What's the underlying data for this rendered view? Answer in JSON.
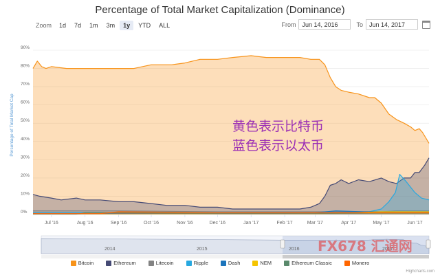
{
  "title": "Percentage of Total Market Capitalization (Dominance)",
  "zoom": {
    "label": "Zoom",
    "buttons": [
      "1d",
      "7d",
      "1m",
      "3m",
      "1y",
      "YTD",
      "ALL"
    ],
    "active": "1y"
  },
  "range": {
    "from_label": "From",
    "from_value": "Jun 14, 2016",
    "to_label": "To",
    "to_value": "Jun 14, 2017"
  },
  "annotation": {
    "line1": "黄色表示比特币",
    "line2": "蓝色表示以太币",
    "color": "#9b2fb5"
  },
  "navigator": {
    "labels": [
      "2014",
      "2015",
      "2016",
      "2017"
    ]
  },
  "watermark": "FX678 汇通网",
  "credits": "Highcharts.com",
  "colors": {
    "bitcoin": "#f7931a",
    "ethereum": "#454a75",
    "litecoin": "#838383",
    "ripple": "#27a8e0",
    "dash": "#1c75bc",
    "nem": "#f5c400",
    "ethereum_classic": "#5a8a6c",
    "monero": "#ff6600",
    "grid": "#e6e6e6",
    "axis_label": "#5b9bd5"
  },
  "chart_data": {
    "type": "area",
    "title": "Percentage of Total Market Capitalization (Dominance)",
    "ylabel": "Percentage of Total Market Cap",
    "ylim": [
      0,
      90
    ],
    "yticks": [
      0,
      10,
      20,
      30,
      40,
      50,
      60,
      70,
      80,
      90
    ],
    "ytick_labels": [
      "0%",
      "10%",
      "20%",
      "30%",
      "40%",
      "50%",
      "60%",
      "70%",
      "80%",
      "90%"
    ],
    "xlim": [
      "2016-06-14",
      "2017-06-14"
    ],
    "xticks": [
      "2016-07-01",
      "2016-08-01",
      "2016-09-01",
      "2016-10-01",
      "2016-11-01",
      "2016-12-01",
      "2017-01-01",
      "2017-02-01",
      "2017-03-01",
      "2017-04-01",
      "2017-05-01",
      "2017-06-01"
    ],
    "xtick_labels": [
      "Jul '16",
      "Aug '16",
      "Sep '16",
      "Oct '16",
      "Nov '16",
      "Dec '16",
      "Jan '17",
      "Feb '17",
      "Mar '17",
      "Apr '17",
      "May '17",
      "Jun '17"
    ],
    "grid": true,
    "legend_position": "bottom",
    "series": [
      {
        "name": "Bitcoin",
        "color": "#f7931a",
        "x": [
          "2016-06-14",
          "2016-06-18",
          "2016-06-22",
          "2016-06-26",
          "2016-07-01",
          "2016-07-15",
          "2016-08-01",
          "2016-08-20",
          "2016-09-01",
          "2016-09-15",
          "2016-10-01",
          "2016-10-20",
          "2016-11-01",
          "2016-11-15",
          "2016-12-01",
          "2016-12-15",
          "2017-01-01",
          "2017-01-15",
          "2017-02-01",
          "2017-02-15",
          "2017-02-25",
          "2017-03-05",
          "2017-03-10",
          "2017-03-15",
          "2017-03-20",
          "2017-03-25",
          "2017-04-01",
          "2017-04-10",
          "2017-04-20",
          "2017-04-25",
          "2017-05-01",
          "2017-05-08",
          "2017-05-15",
          "2017-05-22",
          "2017-05-28",
          "2017-06-01",
          "2017-06-05",
          "2017-06-08",
          "2017-06-11",
          "2017-06-14"
        ],
        "values": [
          80,
          84,
          81,
          80,
          81,
          80,
          80,
          80,
          80,
          80,
          82,
          82,
          83,
          85,
          85,
          86,
          87,
          86,
          86,
          86,
          85,
          85,
          82,
          75,
          70,
          68,
          67,
          66,
          64,
          64,
          61,
          55,
          52,
          50,
          48,
          46,
          47,
          45,
          42,
          39
        ]
      },
      {
        "name": "Ethereum",
        "color": "#454a75",
        "x": [
          "2016-06-14",
          "2016-06-20",
          "2016-07-01",
          "2016-07-10",
          "2016-07-24",
          "2016-08-01",
          "2016-08-15",
          "2016-09-01",
          "2016-09-15",
          "2016-10-01",
          "2016-10-15",
          "2016-11-01",
          "2016-11-15",
          "2016-12-01",
          "2016-12-15",
          "2017-01-01",
          "2017-01-15",
          "2017-02-01",
          "2017-02-15",
          "2017-02-25",
          "2017-03-05",
          "2017-03-10",
          "2017-03-15",
          "2017-03-20",
          "2017-03-25",
          "2017-04-01",
          "2017-04-10",
          "2017-04-20",
          "2017-05-01",
          "2017-05-08",
          "2017-05-15",
          "2017-05-22",
          "2017-05-28",
          "2017-06-01",
          "2017-06-05",
          "2017-06-10",
          "2017-06-14"
        ],
        "values": [
          11,
          10,
          9,
          8,
          9,
          8,
          8,
          7,
          7,
          6,
          5,
          5,
          4,
          4,
          3,
          3,
          3,
          3,
          3,
          4,
          6,
          10,
          16,
          17,
          19,
          17,
          19,
          18,
          20,
          18,
          17,
          20,
          20,
          23,
          23,
          27,
          31
        ]
      },
      {
        "name": "Litecoin",
        "color": "#838383",
        "x": [
          "2016-06-14",
          "2016-09-01",
          "2016-12-01",
          "2017-03-01",
          "2017-04-01",
          "2017-05-01",
          "2017-05-15",
          "2017-06-01",
          "2017-06-14"
        ],
        "values": [
          2,
          2,
          1.5,
          1.5,
          1.5,
          1.5,
          2,
          2,
          2
        ]
      },
      {
        "name": "Ripple",
        "color": "#27a8e0",
        "x": [
          "2016-06-14",
          "2016-09-01",
          "2016-12-01",
          "2017-02-01",
          "2017-03-01",
          "2017-03-20",
          "2017-04-01",
          "2017-04-20",
          "2017-05-01",
          "2017-05-08",
          "2017-05-14",
          "2017-05-18",
          "2017-05-24",
          "2017-06-01",
          "2017-06-07",
          "2017-06-14"
        ],
        "values": [
          1,
          1,
          1,
          1,
          1,
          1,
          1,
          1.5,
          3,
          7,
          12,
          22,
          18,
          12,
          9,
          8
        ]
      },
      {
        "name": "Dash",
        "color": "#1c75bc",
        "x": [
          "2016-06-14",
          "2016-12-01",
          "2017-03-01",
          "2017-03-20",
          "2017-04-15",
          "2017-05-15",
          "2017-06-14"
        ],
        "values": [
          0.5,
          0.5,
          1,
          2,
          1.5,
          1.5,
          1.5
        ]
      },
      {
        "name": "NEM",
        "color": "#f5c400",
        "x": [
          "2016-06-14",
          "2017-03-01",
          "2017-05-01",
          "2017-06-14"
        ],
        "values": [
          0.1,
          0.3,
          1.5,
          1.5
        ]
      },
      {
        "name": "Ethereum Classic",
        "color": "#5a8a6c",
        "x": [
          "2016-06-14",
          "2016-07-24",
          "2016-08-01",
          "2016-09-01",
          "2016-12-01",
          "2017-03-01",
          "2017-05-01",
          "2017-06-14"
        ],
        "values": [
          0,
          0,
          1,
          1,
          0.5,
          0.5,
          1,
          1
        ]
      },
      {
        "name": "Monero",
        "color": "#ff6600",
        "x": [
          "2016-06-14",
          "2016-08-15",
          "2016-09-01",
          "2016-12-01",
          "2017-03-01",
          "2017-06-14"
        ],
        "values": [
          0.5,
          0.5,
          1.5,
          1,
          1,
          1
        ]
      }
    ]
  }
}
